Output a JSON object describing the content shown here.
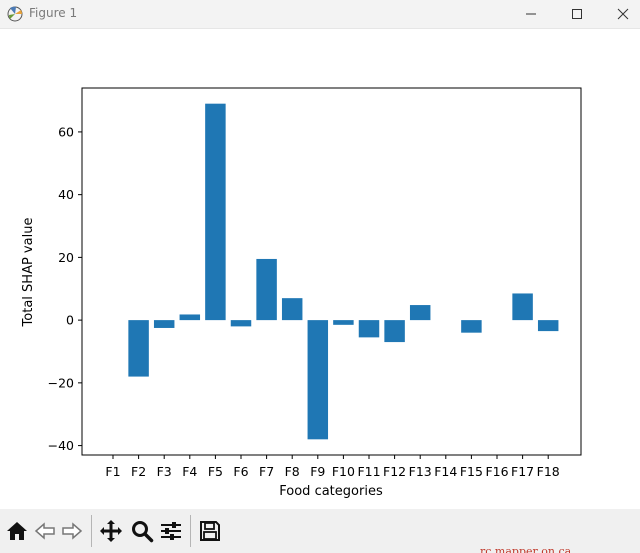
{
  "window": {
    "title": "Figure 1",
    "buttons": [
      "minimize",
      "maximize",
      "close"
    ]
  },
  "toolbar": {
    "icons": [
      "home-icon",
      "back-arrow-icon",
      "forward-arrow-icon",
      "pan-move-icon",
      "zoom-magnifier-icon",
      "configure-subplots-icon",
      "save-floppy-icon"
    ]
  },
  "status_fragment": "rc mapper on ca",
  "colors": {
    "bar": "#1f77b4",
    "titlebar": "#f3f3f3",
    "toolbar": "#f0f0f0"
  },
  "chart_data": {
    "type": "bar",
    "title": "",
    "xlabel": "Food categories",
    "ylabel": "Total SHAP value",
    "categories": [
      "F1",
      "F2",
      "F3",
      "F4",
      "F5",
      "F6",
      "F7",
      "F8",
      "F9",
      "F10",
      "F11",
      "F12",
      "F13",
      "F14",
      "F15",
      "F16",
      "F17",
      "F18"
    ],
    "values": [
      0,
      -18,
      -2.5,
      1.8,
      69,
      -2,
      19.5,
      7,
      -38,
      -1.5,
      -5.5,
      -7,
      4.8,
      0,
      -4,
      0,
      8.5,
      -3.5
    ],
    "ylim": [
      -43,
      74
    ],
    "yticks": [
      -40,
      -20,
      0,
      20,
      40,
      60
    ],
    "ytick_labels": [
      "−40",
      "−20",
      "0",
      "20",
      "40",
      "60"
    ],
    "grid": false,
    "legend": "none"
  }
}
